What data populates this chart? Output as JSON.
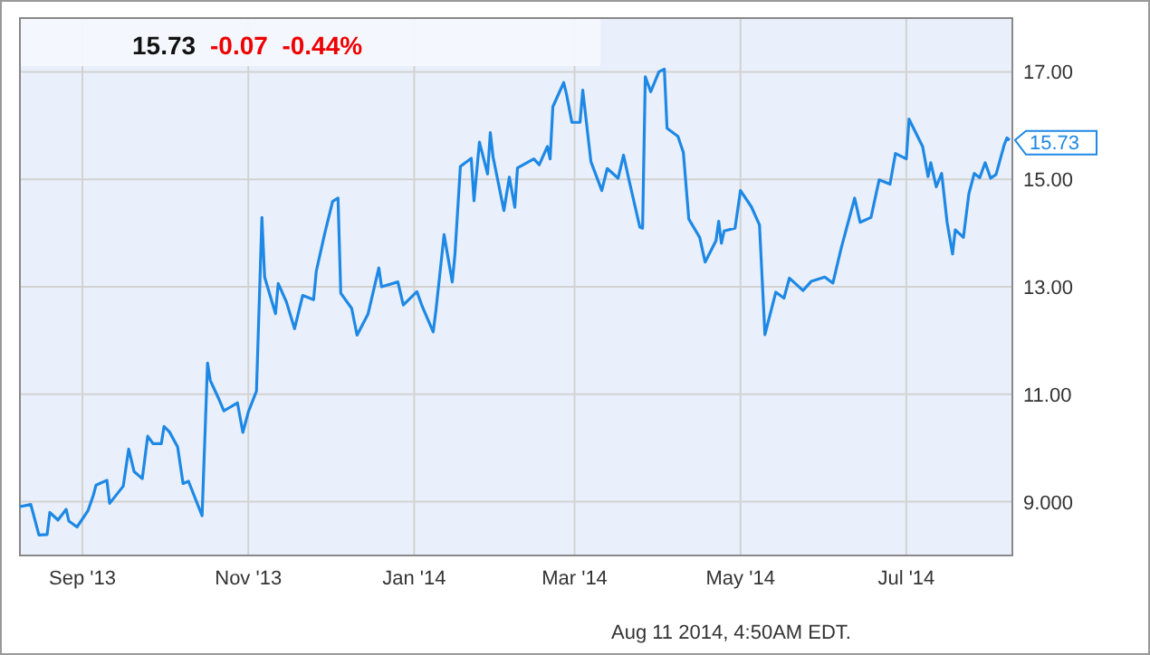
{
  "chart_data": {
    "type": "line",
    "title": "15.73",
    "subtitle": "-0.07  -0.44%",
    "x": [
      "2013-08-09",
      "2013-08-13",
      "2013-08-16",
      "2013-08-19",
      "2013-08-20",
      "2013-08-23",
      "2013-08-26",
      "2013-08-27",
      "2013-08-30",
      "2013-09-03",
      "2013-09-05",
      "2013-09-06",
      "2013-09-10",
      "2013-09-11",
      "2013-09-16",
      "2013-09-18",
      "2013-09-20",
      "2013-09-23",
      "2013-09-25",
      "2013-09-27",
      "2013-09-30",
      "2013-10-01",
      "2013-10-03",
      "2013-10-06",
      "2013-10-08",
      "2013-10-10",
      "2013-10-15",
      "2013-10-17",
      "2013-10-18",
      "2013-10-21",
      "2013-10-23",
      "2013-10-28",
      "2013-10-30",
      "2013-11-01",
      "2013-11-04",
      "2013-11-06",
      "2013-11-07",
      "2013-11-11",
      "2013-11-12",
      "2013-11-15",
      "2013-11-18",
      "2013-11-21",
      "2013-11-25",
      "2013-11-26",
      "2013-11-29",
      "2013-12-02",
      "2013-12-04",
      "2013-12-05",
      "2013-12-09",
      "2013-12-11",
      "2013-12-15",
      "2013-12-19",
      "2013-12-20",
      "2013-12-26",
      "2013-12-28",
      "2014-01-02",
      "2014-01-04",
      "2014-01-08",
      "2014-01-09",
      "2014-01-12",
      "2014-01-15",
      "2014-01-16",
      "2014-01-18",
      "2014-01-22",
      "2014-01-23",
      "2014-01-25",
      "2014-01-28",
      "2014-01-29",
      "2014-01-30",
      "2014-02-03",
      "2014-02-05",
      "2014-02-07",
      "2014-02-08",
      "2014-02-14",
      "2014-02-16",
      "2014-02-19",
      "2014-02-20",
      "2014-02-21",
      "2014-02-25",
      "2014-02-26",
      "2014-02-28",
      "2014-03-03",
      "2014-03-04",
      "2014-03-07",
      "2014-03-11",
      "2014-03-13",
      "2014-03-17",
      "2014-03-19",
      "2014-03-21",
      "2014-03-25",
      "2014-03-26",
      "2014-03-27",
      "2014-03-29",
      "2014-04-01",
      "2014-04-03",
      "2014-04-04",
      "2014-04-08",
      "2014-04-10",
      "2014-04-12",
      "2014-04-16",
      "2014-04-18",
      "2014-04-22",
      "2014-04-23",
      "2014-04-24",
      "2014-04-25",
      "2014-04-29",
      "2014-05-01",
      "2014-05-05",
      "2014-05-08",
      "2014-05-10",
      "2014-05-14",
      "2014-05-17",
      "2014-05-19",
      "2014-05-21",
      "2014-05-24",
      "2014-05-27",
      "2014-06-01",
      "2014-06-04",
      "2014-06-07",
      "2014-06-12",
      "2014-06-14",
      "2014-06-18",
      "2014-06-21",
      "2014-06-25",
      "2014-06-27",
      "2014-07-01",
      "2014-07-02",
      "2014-07-07",
      "2014-07-09",
      "2014-07-10",
      "2014-07-12",
      "2014-07-14",
      "2014-07-16",
      "2014-07-18",
      "2014-07-19",
      "2014-07-22",
      "2014-07-24",
      "2014-07-26",
      "2014-07-28",
      "2014-07-30",
      "2014-08-01",
      "2014-08-03",
      "2014-08-06",
      "2014-08-07",
      "2014-08-08"
    ],
    "series": [
      {
        "color": "#1e88e5",
        "values": [
          8.91,
          8.95,
          8.38,
          8.39,
          8.8,
          8.66,
          8.86,
          8.64,
          8.53,
          8.83,
          9.12,
          9.31,
          9.4,
          8.97,
          9.29,
          9.98,
          9.56,
          9.43,
          10.22,
          10.08,
          10.08,
          10.4,
          10.3,
          10.02,
          9.34,
          9.38,
          8.74,
          11.58,
          11.26,
          10.93,
          10.69,
          10.84,
          10.29,
          10.67,
          11.06,
          14.29,
          13.18,
          12.5,
          13.06,
          12.72,
          12.22,
          12.84,
          12.76,
          13.29,
          13.97,
          14.59,
          14.65,
          12.88,
          12.6,
          12.1,
          12.49,
          13.35,
          13.0,
          13.09,
          12.66,
          12.91,
          12.63,
          12.16,
          12.56,
          13.97,
          13.09,
          13.61,
          15.24,
          15.39,
          14.6,
          15.69,
          15.1,
          15.87,
          15.42,
          14.42,
          15.04,
          14.48,
          15.21,
          15.38,
          15.27,
          15.61,
          15.38,
          16.35,
          16.8,
          16.59,
          16.06,
          16.06,
          16.66,
          15.33,
          14.79,
          15.2,
          15.02,
          15.45,
          14.99,
          14.11,
          14.09,
          16.91,
          16.63,
          17.0,
          17.05,
          15.95,
          15.8,
          15.5,
          14.26,
          13.92,
          13.46,
          13.86,
          14.22,
          13.81,
          14.04,
          14.09,
          14.79,
          14.49,
          14.15,
          12.11,
          12.9,
          12.79,
          13.16,
          13.07,
          12.93,
          13.1,
          13.18,
          13.07,
          13.71,
          14.65,
          14.2,
          14.29,
          14.99,
          14.91,
          15.48,
          15.38,
          16.12,
          15.61,
          15.05,
          15.31,
          14.86,
          15.11,
          14.2,
          13.61,
          14.06,
          13.92,
          14.73,
          15.11,
          15.03,
          15.31,
          15.02,
          15.09,
          15.64,
          15.77,
          15.73
        ]
      }
    ],
    "xlim": [
      "2013-08-09",
      "2014-08-09"
    ],
    "xticks": [
      {
        "value": "2013-09-01",
        "label": "Sep '13"
      },
      {
        "value": "2013-11-01",
        "label": "Nov '13"
      },
      {
        "value": "2014-01-01",
        "label": "Jan '14"
      },
      {
        "value": "2014-03-01",
        "label": "Mar '14"
      },
      {
        "value": "2014-05-01",
        "label": "May '14"
      },
      {
        "value": "2014-07-01",
        "label": "Jul '14"
      }
    ],
    "ylim": [
      8,
      18
    ],
    "yticks": [
      {
        "value": 9,
        "label": "9.000"
      },
      {
        "value": 11,
        "label": "11.00"
      },
      {
        "value": 13,
        "label": "13.00"
      },
      {
        "value": 15,
        "label": "15.00"
      },
      {
        "value": 17,
        "label": "17.00"
      }
    ],
    "grid": true,
    "marker": "none",
    "line_style": "solid",
    "annotations": [
      {
        "text": "15.73",
        "x": "2014-08-08",
        "y": 15.73
      },
      "Aug 11 2014, 4:50AM EDT."
    ]
  }
}
